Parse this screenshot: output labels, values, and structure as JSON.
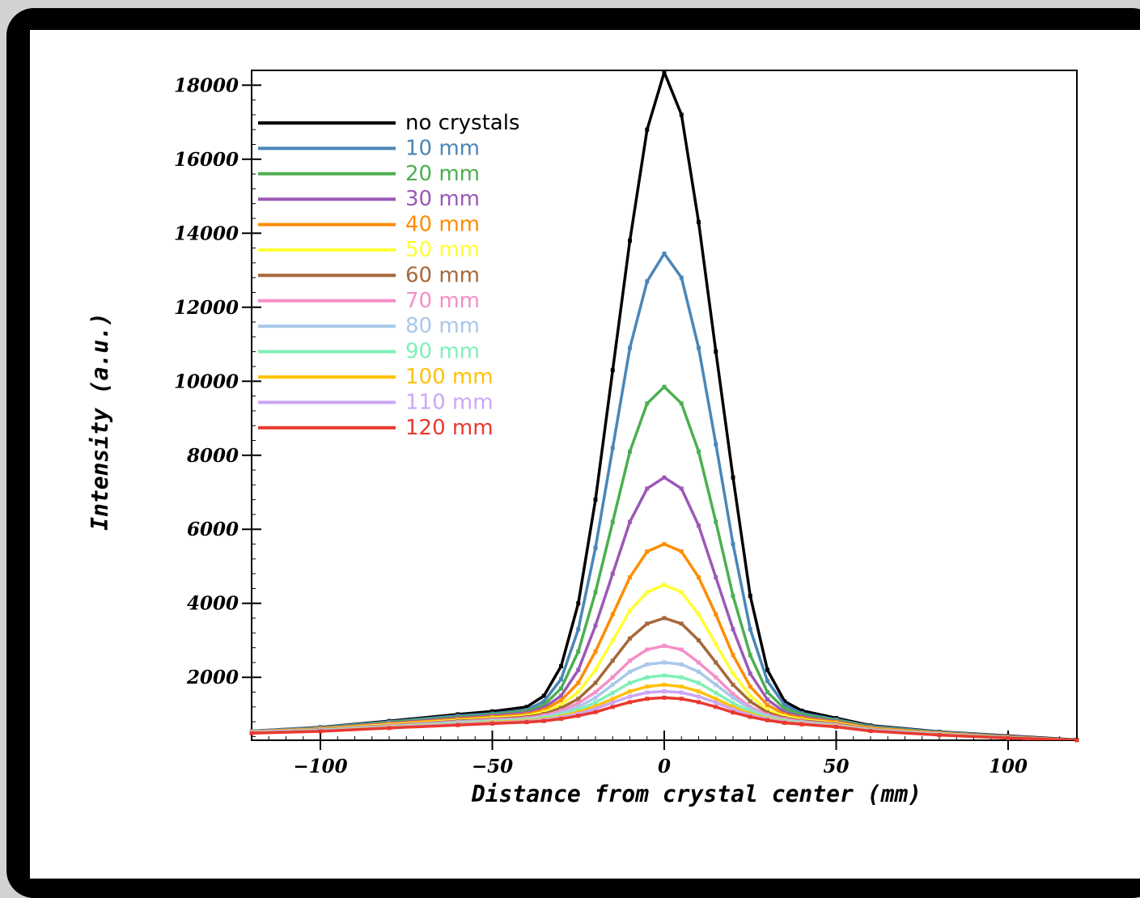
{
  "chart_data": {
    "type": "line",
    "xlabel": "Distance from crystal center (mm)",
    "ylabel": "Intensity (a.u.)",
    "xlim": [
      -120,
      120
    ],
    "ylim": [
      300,
      18400
    ],
    "x_ticks": [
      -100,
      -50,
      0,
      50,
      100
    ],
    "y_ticks": [
      2000,
      4000,
      6000,
      8000,
      10000,
      12000,
      14000,
      16000,
      18000
    ],
    "x_tick_labels": [
      "−100",
      "−50",
      "0",
      "50",
      "100"
    ],
    "y_tick_labels": [
      "2000",
      "4000",
      "6000",
      "8000",
      "10000",
      "12000",
      "14000",
      "16000",
      "18000"
    ],
    "legend_position": "top-left",
    "x": [
      -120,
      -100,
      -80,
      -60,
      -50,
      -40,
      -35,
      -30,
      -25,
      -20,
      -15,
      -10,
      -5,
      0,
      5,
      10,
      15,
      20,
      25,
      30,
      35,
      40,
      50,
      60,
      80,
      100,
      120
    ],
    "series": [
      {
        "name": "no crystals",
        "color": "#000000",
        "values": [
          550,
          650,
          820,
          1000,
          1080,
          1200,
          1500,
          2300,
          4000,
          6800,
          10300,
          13800,
          16800,
          18350,
          17200,
          14300,
          10800,
          7400,
          4200,
          2200,
          1350,
          1100,
          900,
          700,
          530,
          420,
          310
        ]
      },
      {
        "name": "10 mm",
        "color": "#4a86b8",
        "values": [
          550,
          640,
          800,
          960,
          1020,
          1120,
          1350,
          1950,
          3300,
          5500,
          8200,
          10900,
          12700,
          13450,
          12800,
          10900,
          8300,
          5600,
          3300,
          1900,
          1250,
          1030,
          860,
          680,
          520,
          410,
          300
        ]
      },
      {
        "name": "20 mm",
        "color": "#4caf50",
        "values": [
          540,
          630,
          780,
          930,
          990,
          1080,
          1250,
          1700,
          2700,
          4300,
          6200,
          8100,
          9400,
          9850,
          9400,
          8100,
          6200,
          4200,
          2600,
          1600,
          1150,
          990,
          840,
          660,
          510,
          400,
          300
        ]
      },
      {
        "name": "30 mm",
        "color": "#9b59b6",
        "values": [
          540,
          620,
          760,
          900,
          960,
          1040,
          1180,
          1500,
          2200,
          3400,
          4800,
          6200,
          7100,
          7400,
          7100,
          6100,
          4700,
          3300,
          2100,
          1400,
          1060,
          940,
          810,
          640,
          500,
          400,
          300
        ]
      },
      {
        "name": "40 mm",
        "color": "#ff8c00",
        "values": [
          530,
          610,
          740,
          870,
          930,
          1000,
          1120,
          1380,
          1850,
          2700,
          3700,
          4700,
          5400,
          5600,
          5400,
          4700,
          3700,
          2600,
          1750,
          1250,
          1000,
          900,
          790,
          630,
          490,
          390,
          300
        ]
      },
      {
        "name": "50 mm",
        "color": "#ffff33",
        "values": [
          530,
          600,
          720,
          840,
          900,
          960,
          1060,
          1260,
          1600,
          2200,
          3000,
          3800,
          4300,
          4500,
          4300,
          3700,
          2900,
          2100,
          1500,
          1120,
          950,
          860,
          760,
          610,
          480,
          380,
          300
        ]
      },
      {
        "name": "60 mm",
        "color": "#a5683a",
        "values": [
          520,
          590,
          700,
          820,
          870,
          930,
          1010,
          1170,
          1420,
          1850,
          2450,
          3050,
          3450,
          3600,
          3450,
          3000,
          2400,
          1800,
          1350,
          1050,
          900,
          830,
          740,
          600,
          470,
          380,
          300
        ]
      },
      {
        "name": "70 mm",
        "color": "#f48fc7",
        "values": [
          520,
          580,
          690,
          800,
          850,
          900,
          970,
          1100,
          1300,
          1600,
          2000,
          2450,
          2750,
          2850,
          2750,
          2400,
          2000,
          1550,
          1200,
          990,
          870,
          810,
          720,
          590,
          470,
          370,
          300
        ]
      },
      {
        "name": "80 mm",
        "color": "#a8c8ea",
        "values": [
          510,
          570,
          670,
          780,
          830,
          870,
          930,
          1040,
          1200,
          1450,
          1800,
          2150,
          2350,
          2400,
          2350,
          2150,
          1800,
          1450,
          1150,
          950,
          840,
          790,
          700,
          580,
          460,
          370,
          300
        ]
      },
      {
        "name": "90 mm",
        "color": "#7ff0b8",
        "values": [
          510,
          560,
          660,
          760,
          810,
          850,
          900,
          990,
          1120,
          1320,
          1580,
          1850,
          2000,
          2050,
          2000,
          1850,
          1580,
          1300,
          1080,
          920,
          820,
          770,
          690,
          570,
          460,
          370,
          300
        ]
      },
      {
        "name": "100 mm",
        "color": "#ffc107",
        "values": [
          500,
          550,
          650,
          740,
          790,
          830,
          870,
          950,
          1060,
          1220,
          1420,
          1620,
          1750,
          1800,
          1750,
          1620,
          1420,
          1200,
          1020,
          890,
          800,
          760,
          680,
          560,
          450,
          360,
          300
        ]
      },
      {
        "name": "110 mm",
        "color": "#cda6f6",
        "values": [
          500,
          550,
          640,
          730,
          770,
          810,
          850,
          920,
          1010,
          1150,
          1320,
          1480,
          1590,
          1620,
          1590,
          1480,
          1320,
          1130,
          980,
          870,
          790,
          750,
          670,
          560,
          450,
          360,
          300
        ]
      },
      {
        "name": "120 mm",
        "color": "#e8392e",
        "values": [
          490,
          540,
          630,
          710,
          750,
          790,
          820,
          880,
          960,
          1060,
          1200,
          1330,
          1420,
          1450,
          1420,
          1330,
          1200,
          1050,
          930,
          840,
          770,
          730,
          660,
          550,
          440,
          360,
          300
        ]
      }
    ]
  }
}
